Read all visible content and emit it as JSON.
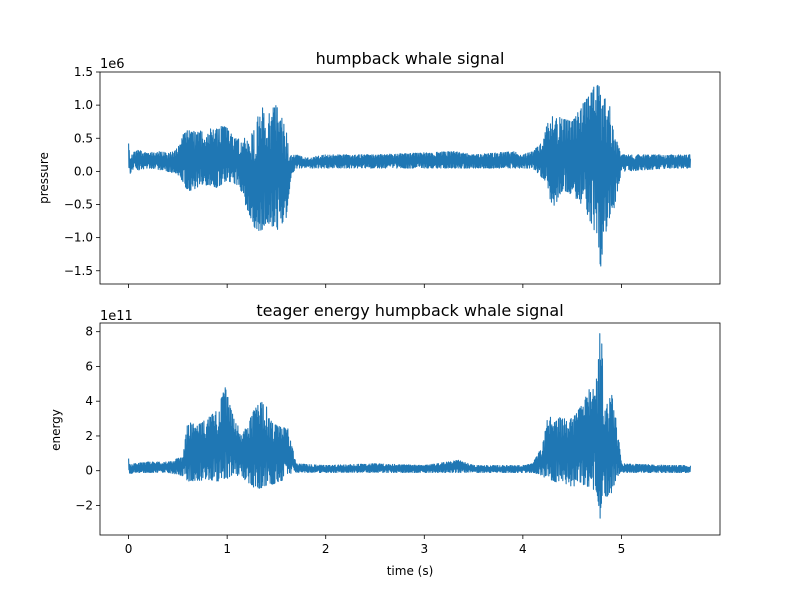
{
  "chart_data": [
    {
      "type": "line",
      "title": "humpback whale signal",
      "xlabel": "",
      "ylabel": "pressure",
      "scale_label": "1e6",
      "xlim": [
        -0.29,
        6.0
      ],
      "ylim": [
        -1.7,
        1.5
      ],
      "x_ticks": [
        0,
        1,
        2,
        3,
        4,
        5
      ],
      "x_tick_labels": [
        "",
        "",
        "",
        "",
        "",
        ""
      ],
      "y_ticks": [
        -1.5,
        -1.0,
        -0.5,
        0.0,
        0.5,
        1.0,
        1.5
      ],
      "y_tick_labels": [
        "−1.5",
        "−1.0",
        "−0.5",
        "0.0",
        "0.5",
        "1.0",
        "1.5"
      ],
      "color": "#1f77b4",
      "series": [
        {
          "x": [
            0.0,
            0.02,
            0.05,
            0.1,
            0.2,
            0.3,
            0.4,
            0.5,
            0.55,
            0.6,
            0.7,
            0.8,
            0.9,
            0.98,
            1.02,
            1.1,
            1.2,
            1.28,
            1.35,
            1.4,
            1.5,
            1.6,
            1.65,
            1.7,
            1.8,
            2.0,
            2.5,
            3.0,
            3.3,
            3.5,
            3.9,
            4.0,
            4.1,
            4.2,
            4.25,
            4.3,
            4.4,
            4.5,
            4.6,
            4.7,
            4.75,
            4.78,
            4.82,
            4.88,
            4.92,
            5.0,
            5.5,
            5.7
          ],
          "lo": [
            0.08,
            -0.05,
            0.05,
            0.02,
            0.05,
            0.03,
            0.0,
            -0.05,
            -0.15,
            -0.3,
            -0.25,
            -0.2,
            -0.25,
            -0.15,
            -0.15,
            -0.2,
            -0.55,
            -0.85,
            -0.92,
            -0.75,
            -0.9,
            -0.7,
            -0.05,
            0.05,
            0.05,
            0.05,
            0.05,
            0.05,
            0.05,
            0.05,
            0.05,
            0.05,
            0.05,
            -0.1,
            -0.2,
            -0.6,
            -0.3,
            -0.35,
            -0.5,
            -0.8,
            -1.0,
            -1.57,
            -1.05,
            -0.7,
            -0.6,
            0.0,
            0.05,
            0.05
          ],
          "hi": [
            0.42,
            0.2,
            0.3,
            0.32,
            0.28,
            0.3,
            0.28,
            0.35,
            0.55,
            0.62,
            0.6,
            0.65,
            0.65,
            0.72,
            0.6,
            0.5,
            0.5,
            0.65,
            1.03,
            0.85,
            1.05,
            0.6,
            0.25,
            0.25,
            0.2,
            0.25,
            0.25,
            0.28,
            0.3,
            0.25,
            0.3,
            0.25,
            0.3,
            0.45,
            0.75,
            0.85,
            0.8,
            0.75,
            1.0,
            1.2,
            1.38,
            1.3,
            1.15,
            1.0,
            0.6,
            0.25,
            0.25,
            0.25
          ]
        }
      ]
    },
    {
      "type": "line",
      "title": "teager energy humpback whale signal",
      "xlabel": "time (s)",
      "ylabel": "energy",
      "scale_label": "1e11",
      "xlim": [
        -0.29,
        6.0
      ],
      "ylim": [
        -3.7,
        8.5
      ],
      "x_ticks": [
        0,
        1,
        2,
        3,
        4,
        5
      ],
      "x_tick_labels": [
        "0",
        "1",
        "2",
        "3",
        "4",
        "5"
      ],
      "y_ticks": [
        -2,
        0,
        2,
        4,
        6,
        8
      ],
      "y_tick_labels": [
        "−2",
        "0",
        "2",
        "4",
        "6",
        "8"
      ],
      "color": "#1f77b4",
      "series": [
        {
          "x": [
            0.0,
            0.02,
            0.05,
            0.2,
            0.4,
            0.55,
            0.6,
            0.7,
            0.8,
            0.9,
            0.98,
            1.05,
            1.15,
            1.2,
            1.3,
            1.38,
            1.45,
            1.55,
            1.62,
            1.7,
            2.0,
            2.5,
            3.0,
            3.35,
            3.5,
            4.0,
            4.1,
            4.2,
            4.25,
            4.3,
            4.4,
            4.5,
            4.6,
            4.7,
            4.76,
            4.78,
            4.8,
            4.83,
            4.9,
            4.95,
            5.0,
            5.5,
            5.7
          ],
          "lo": [
            -0.1,
            -0.2,
            -0.1,
            -0.1,
            -0.1,
            -0.3,
            -0.6,
            -0.6,
            -0.5,
            -0.6,
            -0.5,
            -0.3,
            -0.4,
            -0.6,
            -1.1,
            -0.9,
            -0.8,
            -0.6,
            -0.2,
            -0.1,
            -0.1,
            -0.1,
            -0.1,
            -0.1,
            -0.1,
            -0.1,
            -0.1,
            -0.3,
            -0.6,
            -0.6,
            -0.7,
            -0.9,
            -0.8,
            -1.0,
            -1.5,
            -3.0,
            -2.0,
            -1.5,
            -1.4,
            -0.5,
            -0.1,
            -0.1,
            -0.1
          ],
          "hi": [
            0.7,
            0.3,
            0.4,
            0.5,
            0.5,
            0.8,
            2.8,
            2.6,
            3.0,
            3.5,
            4.8,
            3.4,
            2.0,
            2.6,
            3.8,
            4.0,
            2.8,
            2.5,
            2.4,
            0.4,
            0.3,
            0.4,
            0.3,
            0.6,
            0.3,
            0.3,
            0.4,
            1.5,
            3.0,
            3.2,
            3.0,
            3.0,
            3.8,
            5.0,
            5.7,
            7.9,
            7.5,
            3.5,
            4.4,
            3.0,
            0.4,
            0.3,
            0.3
          ]
        }
      ]
    }
  ]
}
